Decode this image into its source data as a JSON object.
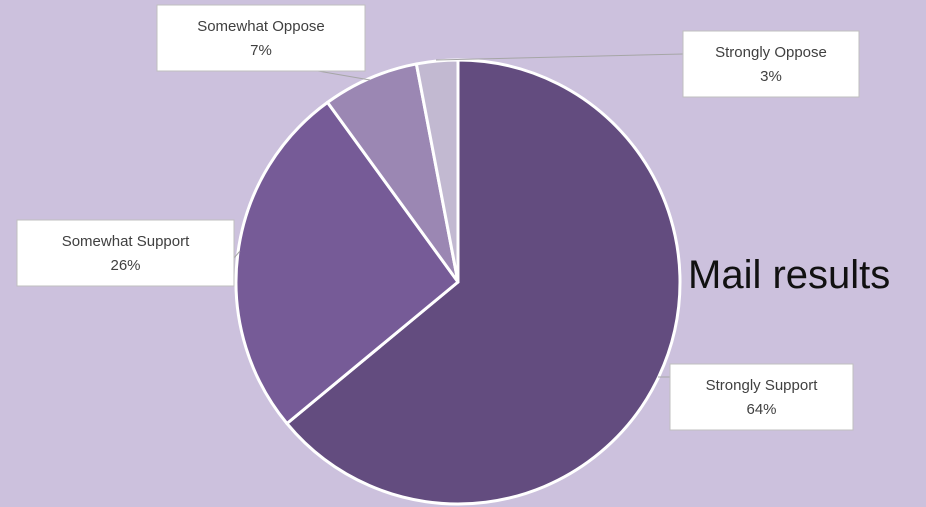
{
  "chart_data": {
    "type": "pie",
    "title": "Mail results",
    "categories": [
      "Strongly Support",
      "Somewhat Support",
      "Somewhat Oppose",
      "Strongly Oppose"
    ],
    "values": [
      64,
      26,
      7,
      3
    ],
    "value_labels": [
      "64%",
      "26%",
      "7%",
      "3%"
    ],
    "colors": [
      "#634C7F",
      "#765B97",
      "#9B87B3",
      "#C2B9D1"
    ],
    "start": "12 o'clock",
    "direction": "clockwise",
    "legend": "none",
    "data_labels": "callouts"
  }
}
